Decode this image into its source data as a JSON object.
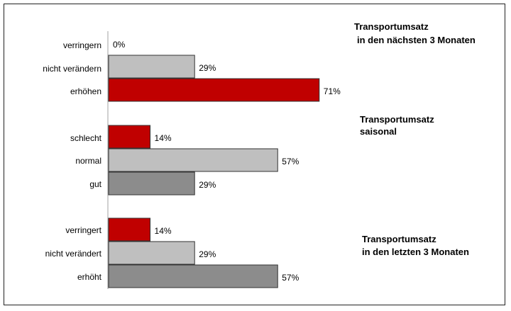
{
  "chart_data": {
    "type": "bar",
    "orientation": "horizontal",
    "xlim": [
      0,
      100
    ],
    "unit": "%",
    "grid": false,
    "groups": [
      {
        "title_lines": [
          "Transportumsatz",
          "in den nächsten 3 Monaten"
        ],
        "categories": [
          "verringern",
          "nicht verändern",
          "erhöhen"
        ],
        "values": [
          0,
          29,
          71
        ],
        "labels": [
          "0%",
          "29%",
          "71%"
        ],
        "colors": [
          "#c00000",
          "#bfbfbf",
          "#c00000"
        ]
      },
      {
        "title_lines": [
          "Transportumsatz",
          "saisonal"
        ],
        "categories": [
          "schlecht",
          "normal",
          "gut"
        ],
        "values": [
          14,
          57,
          29
        ],
        "labels": [
          "14%",
          "57%",
          "29%"
        ],
        "colors": [
          "#c00000",
          "#bfbfbf",
          "#8c8c8c"
        ]
      },
      {
        "title_lines": [
          "Transportumsatz",
          "in den letzten 3 Monaten"
        ],
        "categories": [
          "verringert",
          "nicht verändert",
          "erhöht"
        ],
        "values": [
          14,
          29,
          57
        ],
        "labels": [
          "14%",
          "29%",
          "57%"
        ],
        "colors": [
          "#c00000",
          "#bfbfbf",
          "#8c8c8c"
        ]
      }
    ]
  }
}
